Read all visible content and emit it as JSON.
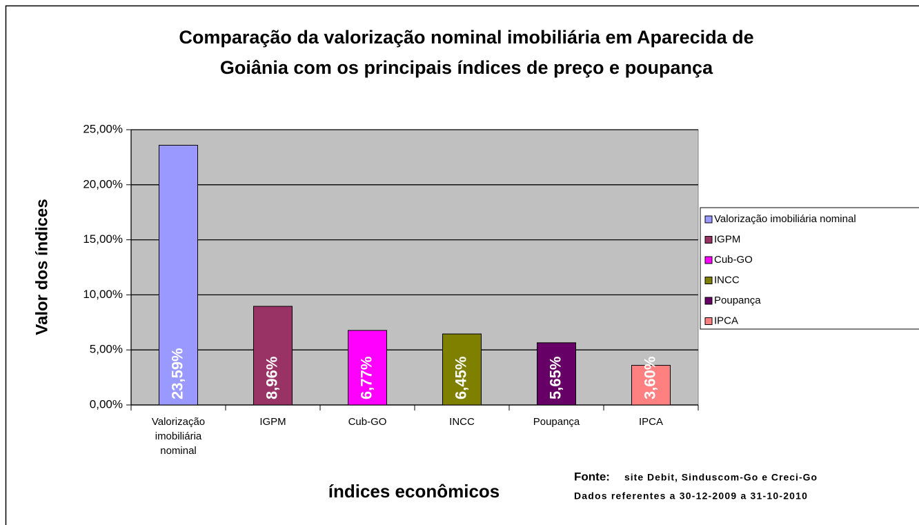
{
  "chart_data": {
    "type": "bar",
    "title": [
      "Comparação da valorização nominal imobiliária em Aparecida de",
      "Goiânia com os principais índices de preço e poupança"
    ],
    "x_label": "índices econômicos",
    "y_label": "Valor dos índices",
    "categories": [
      "Valorização imobiliária nominal",
      "IGPM",
      "Cub-GO",
      "INCC",
      "Poupança",
      "IPCA"
    ],
    "values": [
      23.59,
      8.96,
      6.77,
      6.45,
      5.65,
      3.6
    ],
    "value_labels": [
      "23,59%",
      "8,96%",
      "6,77%",
      "6,45%",
      "5,65%",
      "3,60%"
    ],
    "colors": [
      "#9999ff",
      "#993366",
      "#ff00ff",
      "#808000",
      "#660066",
      "#ff8080"
    ],
    "ylim": [
      0,
      25
    ],
    "yticks": [
      {
        "value": 0,
        "label": "0,00%"
      },
      {
        "value": 5,
        "label": "5,00%"
      },
      {
        "value": 10,
        "label": "10,00%"
      },
      {
        "value": 15,
        "label": "15,00%"
      },
      {
        "value": 20,
        "label": "20,00%"
      },
      {
        "value": 25,
        "label": "25,00%"
      }
    ],
    "grid": true,
    "legend": "right",
    "source": [
      "Fonte:",
      "site Debit, Sinduscom-Go e Creci-Go",
      "Dados referentes a 30-12-2009 a 31-10-2010"
    ]
  }
}
